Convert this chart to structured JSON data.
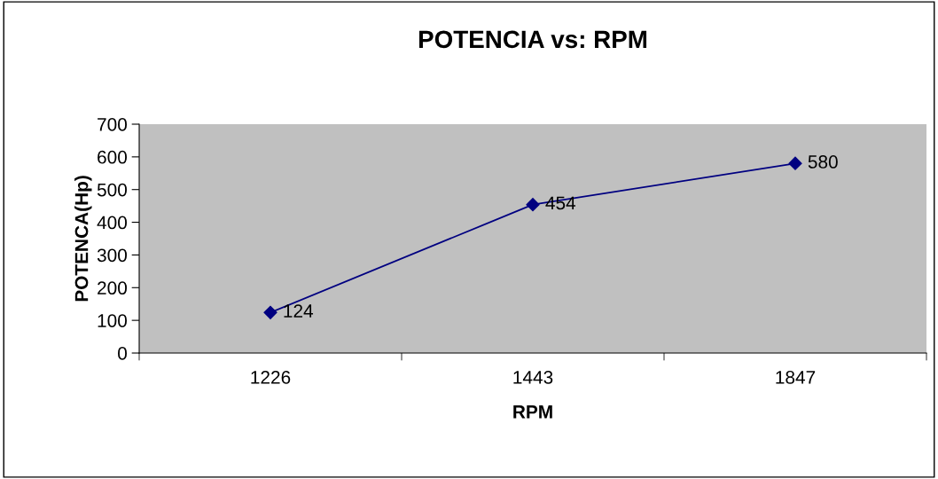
{
  "chart_data": {
    "type": "line",
    "title": "POTENCIA vs: RPM",
    "xlabel": "RPM",
    "ylabel": "POTENCA(Hp)",
    "categories": [
      "1226",
      "1443",
      "1847"
    ],
    "series": [
      {
        "color": "#000080",
        "values": [
          124,
          454,
          580
        ]
      }
    ],
    "ylim": [
      0,
      700
    ],
    "yticks": [
      0,
      100,
      200,
      300,
      400,
      500,
      600,
      700
    ],
    "marker": "diamond",
    "line_style": "solid",
    "data_labels": true,
    "grid": false,
    "legend": false
  }
}
